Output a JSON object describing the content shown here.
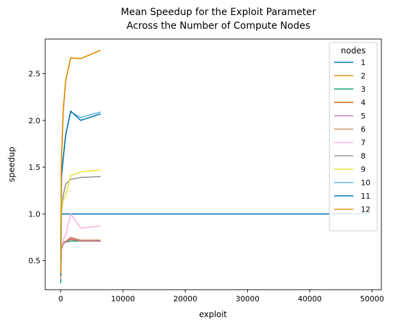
{
  "chart_data": {
    "type": "line",
    "title_line1": "Mean Speedup for the Exploit Parameter",
    "title_line2": "Across the Number of Compute Nodes",
    "xlabel": "exploit",
    "ylabel": "speedup",
    "xlim": [
      -2500,
      51500
    ],
    "ylim": [
      0.19,
      2.87
    ],
    "xticks": [
      0,
      10000,
      20000,
      30000,
      40000,
      50000
    ],
    "xtick_labels": [
      "0",
      "10000",
      "20000",
      "30000",
      "40000",
      "50000"
    ],
    "yticks": [
      0.5,
      1.0,
      1.5,
      2.0,
      2.5
    ],
    "ytick_labels": [
      "0.5",
      "1.0",
      "1.5",
      "2.0",
      "2.5"
    ],
    "grid": false,
    "legend_title": "nodes",
    "legend_position": "top-right",
    "series": [
      {
        "name": "1",
        "color": "#0173b2",
        "x": [
          0,
          49500
        ],
        "y": [
          1.0,
          1.0
        ]
      },
      {
        "name": "2",
        "color": "#de8f05",
        "x": [
          0,
          100,
          400,
          800,
          1600,
          3200,
          6400
        ],
        "y": [
          0.35,
          1.5,
          2.1,
          2.43,
          2.67,
          2.66,
          2.75
        ]
      },
      {
        "name": "3",
        "color": "#029e73",
        "x": [
          0,
          100,
          400,
          800,
          1600,
          3200,
          6400
        ],
        "y": [
          0.26,
          0.62,
          0.68,
          0.7,
          0.71,
          0.71,
          0.71
        ]
      },
      {
        "name": "4",
        "color": "#d55e00",
        "x": [
          0,
          100,
          400,
          800,
          1600,
          3200,
          6400
        ],
        "y": [
          0.3,
          0.62,
          0.68,
          0.7,
          0.73,
          0.71,
          0.71
        ]
      },
      {
        "name": "5",
        "color": "#cc78bc",
        "x": [
          0,
          100,
          400,
          800,
          1600,
          3200,
          6400
        ],
        "y": [
          0.3,
          0.63,
          0.68,
          0.7,
          0.74,
          0.71,
          0.71
        ]
      },
      {
        "name": "6",
        "color": "#ca9161",
        "x": [
          0,
          100,
          400,
          800,
          1600,
          3200,
          6400
        ],
        "y": [
          0.31,
          0.63,
          0.69,
          0.71,
          0.75,
          0.72,
          0.72
        ]
      },
      {
        "name": "7",
        "color": "#fbafe4",
        "x": [
          0,
          100,
          400,
          800,
          1600,
          3200,
          6400
        ],
        "y": [
          0.32,
          0.65,
          0.72,
          0.78,
          1.0,
          0.85,
          0.87
        ]
      },
      {
        "name": "8",
        "color": "#949494",
        "x": [
          0,
          100,
          400,
          800,
          1600,
          3200,
          6400
        ],
        "y": [
          0.33,
          1.0,
          1.2,
          1.32,
          1.37,
          1.39,
          1.4
        ]
      },
      {
        "name": "9",
        "color": "#ece133",
        "x": [
          0,
          100,
          400,
          800,
          1600,
          3200,
          6400
        ],
        "y": [
          0.33,
          1.02,
          1.15,
          1.2,
          1.41,
          1.45,
          1.47
        ]
      },
      {
        "name": "10",
        "color": "#56b4e9",
        "x": [
          0,
          100,
          400,
          800,
          1600,
          3200,
          6400
        ],
        "y": [
          0.34,
          1.35,
          1.6,
          1.85,
          2.09,
          2.03,
          2.09
        ]
      },
      {
        "name": "11",
        "color": "#0173b2",
        "x": [
          0,
          100,
          400,
          800,
          1600,
          3200,
          6400
        ],
        "y": [
          0.34,
          1.4,
          1.6,
          1.85,
          2.1,
          2.0,
          2.07
        ]
      },
      {
        "name": "12",
        "color": "#de8f05",
        "x": [
          0,
          100,
          400,
          800,
          1600,
          3200,
          6400
        ],
        "y": [
          0.36,
          1.55,
          2.12,
          2.43,
          2.67,
          2.66,
          2.75
        ]
      }
    ]
  }
}
